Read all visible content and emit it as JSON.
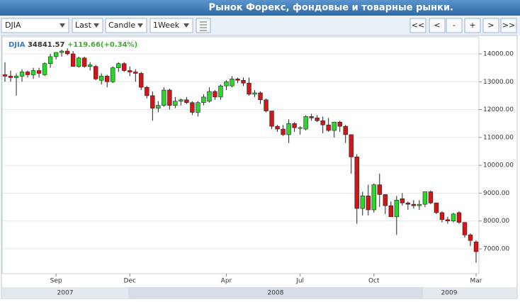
{
  "header": {
    "title": "Рынок Форекс, фондовые и товарные рынки."
  },
  "toolbar": {
    "symbol": "DJIA",
    "field": "Last",
    "style": "Candle",
    "period": "1Week",
    "buttons": [
      "<<",
      "<",
      "-",
      "+",
      ">",
      ">>"
    ]
  },
  "chart_data": {
    "type": "candlestick",
    "legend": {
      "symbol": "DJIA",
      "last": 34841.57,
      "change": "+119.66(+0.34%)"
    },
    "up_color": "#22dd22",
    "down_color": "#dd1111",
    "open": [
      13250,
      13200,
      13150,
      13200,
      13350,
      13250,
      13400,
      13250,
      13650,
      13900,
      14050,
      14100,
      14000,
      13550,
      13850,
      13550,
      13550,
      13050,
      13200,
      13000,
      13500,
      13650,
      13400,
      13350,
      13300,
      12800,
      12500,
      12050,
      12150,
      12700,
      12150,
      12300,
      12350,
      12250,
      11900,
      12250,
      12300,
      12650,
      12450,
      12850,
      12850,
      13100,
      13050,
      12950,
      12550,
      12600,
      12350,
      11950,
      11400,
      11300,
      11100,
      11500,
      11350,
      11300,
      11750,
      11700,
      11600,
      11450,
      11250,
      11550,
      11400,
      11100,
      10300,
      8450,
      8900,
      8400,
      9300,
      8950,
      8550,
      8150,
      8800,
      8650,
      8600,
      8550,
      8600,
      9050,
      8650,
      8300,
      8050,
      8000,
      8300,
      7950,
      7500,
      7250
    ],
    "high": [
      13700,
      13400,
      13300,
      13450,
      13400,
      13500,
      13500,
      13700,
      14000,
      14050,
      14150,
      14200,
      14100,
      13900,
      13900,
      13700,
      13600,
      13300,
      13250,
      13550,
      13700,
      13700,
      13550,
      13450,
      13350,
      12850,
      12650,
      12300,
      12800,
      12750,
      12450,
      12400,
      12450,
      12300,
      12300,
      12550,
      12800,
      12700,
      12900,
      13050,
      13200,
      13150,
      13150,
      13150,
      12700,
      12650,
      12400,
      11950,
      11450,
      11450,
      11650,
      11550,
      11400,
      11800,
      11850,
      11800,
      11750,
      11700,
      11550,
      11600,
      11450,
      11100,
      10400,
      9050,
      9300,
      9350,
      9700,
      8950,
      8700,
      8900,
      9000,
      8700,
      8750,
      8750,
      9050,
      9100,
      8650,
      8350,
      8150,
      8300,
      8350,
      7950,
      7550,
      7300
    ],
    "low": [
      13000,
      13000,
      12500,
      13000,
      13150,
      13100,
      13150,
      13200,
      13500,
      13800,
      13900,
      13950,
      13550,
      13500,
      13500,
      13400,
      13050,
      12900,
      12800,
      12950,
      13350,
      13350,
      13200,
      13000,
      12700,
      12400,
      11600,
      11900,
      12100,
      12000,
      12050,
      12150,
      12200,
      11800,
      11750,
      12150,
      12250,
      12350,
      12350,
      12700,
      12800,
      12950,
      12850,
      12500,
      12450,
      12200,
      11900,
      11300,
      11200,
      11050,
      10800,
      11200,
      11100,
      11250,
      11600,
      11550,
      11150,
      11200,
      11000,
      11200,
      10800,
      9700,
      7900,
      8200,
      8200,
      8300,
      8500,
      8250,
      8150,
      7500,
      8550,
      8400,
      8450,
      8400,
      8500,
      8600,
      8250,
      7950,
      7900,
      7950,
      7900,
      7400,
      7100,
      6500
    ],
    "close": [
      13200,
      13150,
      13200,
      13350,
      13250,
      13400,
      13300,
      13650,
      13900,
      14050,
      14100,
      14000,
      13550,
      13850,
      13550,
      13600,
      13100,
      13200,
      13000,
      13500,
      13650,
      13400,
      13350,
      13300,
      12800,
      12500,
      12050,
      12150,
      12700,
      12150,
      12300,
      12350,
      12250,
      11900,
      12250,
      12450,
      12650,
      12450,
      12850,
      13000,
      13100,
      13050,
      12950,
      12550,
      12600,
      12350,
      11950,
      11400,
      11300,
      11100,
      11500,
      11350,
      11350,
      11750,
      11700,
      11600,
      11450,
      11250,
      11550,
      11400,
      11100,
      10300,
      8450,
      8900,
      8400,
      9300,
      8950,
      8550,
      8150,
      8750,
      8650,
      8600,
      8550,
      8600,
      9050,
      8650,
      8300,
      8050,
      8000,
      8250,
      7950,
      7500,
      7300,
      6900
    ],
    "xlim": [
      -0.5,
      83.5
    ],
    "xticks": [
      {
        "value": 9,
        "label": "Sep"
      },
      {
        "value": 22,
        "label": "Dec"
      },
      {
        "value": 39,
        "label": "Apr"
      },
      {
        "value": 52,
        "label": "Jul"
      },
      {
        "value": 65,
        "label": "Oct"
      },
      {
        "value": 83,
        "label": "Mar"
      }
    ],
    "years": [
      "2007",
      "2008",
      "2009"
    ],
    "ylim": [
      6110,
      14610
    ],
    "yticks": [
      {
        "value": 7000,
        "label": "7000.00"
      },
      {
        "value": 8000,
        "label": "8000.00"
      },
      {
        "value": 9000,
        "label": "9000.00"
      },
      {
        "value": 10000,
        "label": "10000.00"
      },
      {
        "value": 11000,
        "label": "11000.00"
      },
      {
        "value": 12000,
        "label": "12000.00"
      },
      {
        "value": 13000,
        "label": "13000.00"
      },
      {
        "value": 14000,
        "label": "14000.00"
      }
    ],
    "grid": true
  }
}
